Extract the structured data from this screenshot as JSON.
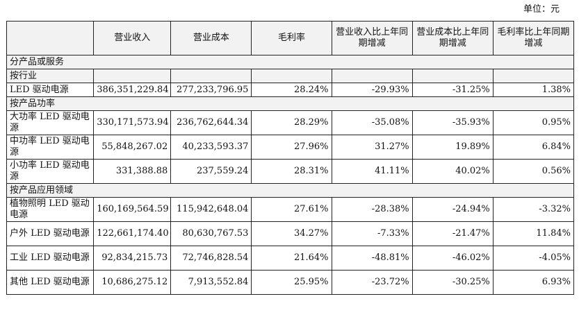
{
  "unit_label": "单位：元",
  "headers": [
    "",
    "营业收入",
    "营业成本",
    "毛利率",
    "营业收入比上年同期增减",
    "营业成本比上年同期增减",
    "毛利率比上年同期增减"
  ],
  "sections": {
    "top": "分产品或服务",
    "industry": "按行业",
    "power": "按产品功率",
    "application": "按产品应用领域"
  },
  "rows": {
    "led": [
      "LED 驱动电源",
      "386,351,229.84",
      "277,233,796.95",
      "28.24%",
      "-29.93%",
      "-31.25%",
      "1.38%"
    ],
    "high": [
      "大功率 LED 驱动电源",
      "330,171,573.94",
      "236,762,644.34",
      "28.29%",
      "-35.08%",
      "-35.93%",
      "0.95%"
    ],
    "mid": [
      "中功率 LED 驱动电源",
      "55,848,267.02",
      "40,233,593.37",
      "27.96%",
      "31.27%",
      "19.89%",
      "6.84%"
    ],
    "low": [
      "小功率 LED 驱动电源",
      "331,388.88",
      "237,559.24",
      "28.31%",
      "41.11%",
      "40.02%",
      "0.56%"
    ],
    "plant": [
      "植物照明 LED 驱动电源",
      "160,169,564.59",
      "115,942,648.04",
      "27.61%",
      "-28.38%",
      "-24.94%",
      "-3.32%"
    ],
    "outdoor": [
      "户外 LED 驱动电源",
      "122,661,174.40",
      "80,630,767.53",
      "34.27%",
      "-7.33%",
      "-21.47%",
      "11.84%"
    ],
    "industrial": [
      "工业 LED 驱动电源",
      "92,834,215.73",
      "72,746,828.54",
      "21.64%",
      "-48.81%",
      "-46.02%",
      "-4.05%"
    ],
    "other": [
      "其他 LED 驱动电源",
      "10,686,275.12",
      "7,913,552.84",
      "25.95%",
      "-23.72%",
      "-30.25%",
      "6.93%"
    ]
  }
}
